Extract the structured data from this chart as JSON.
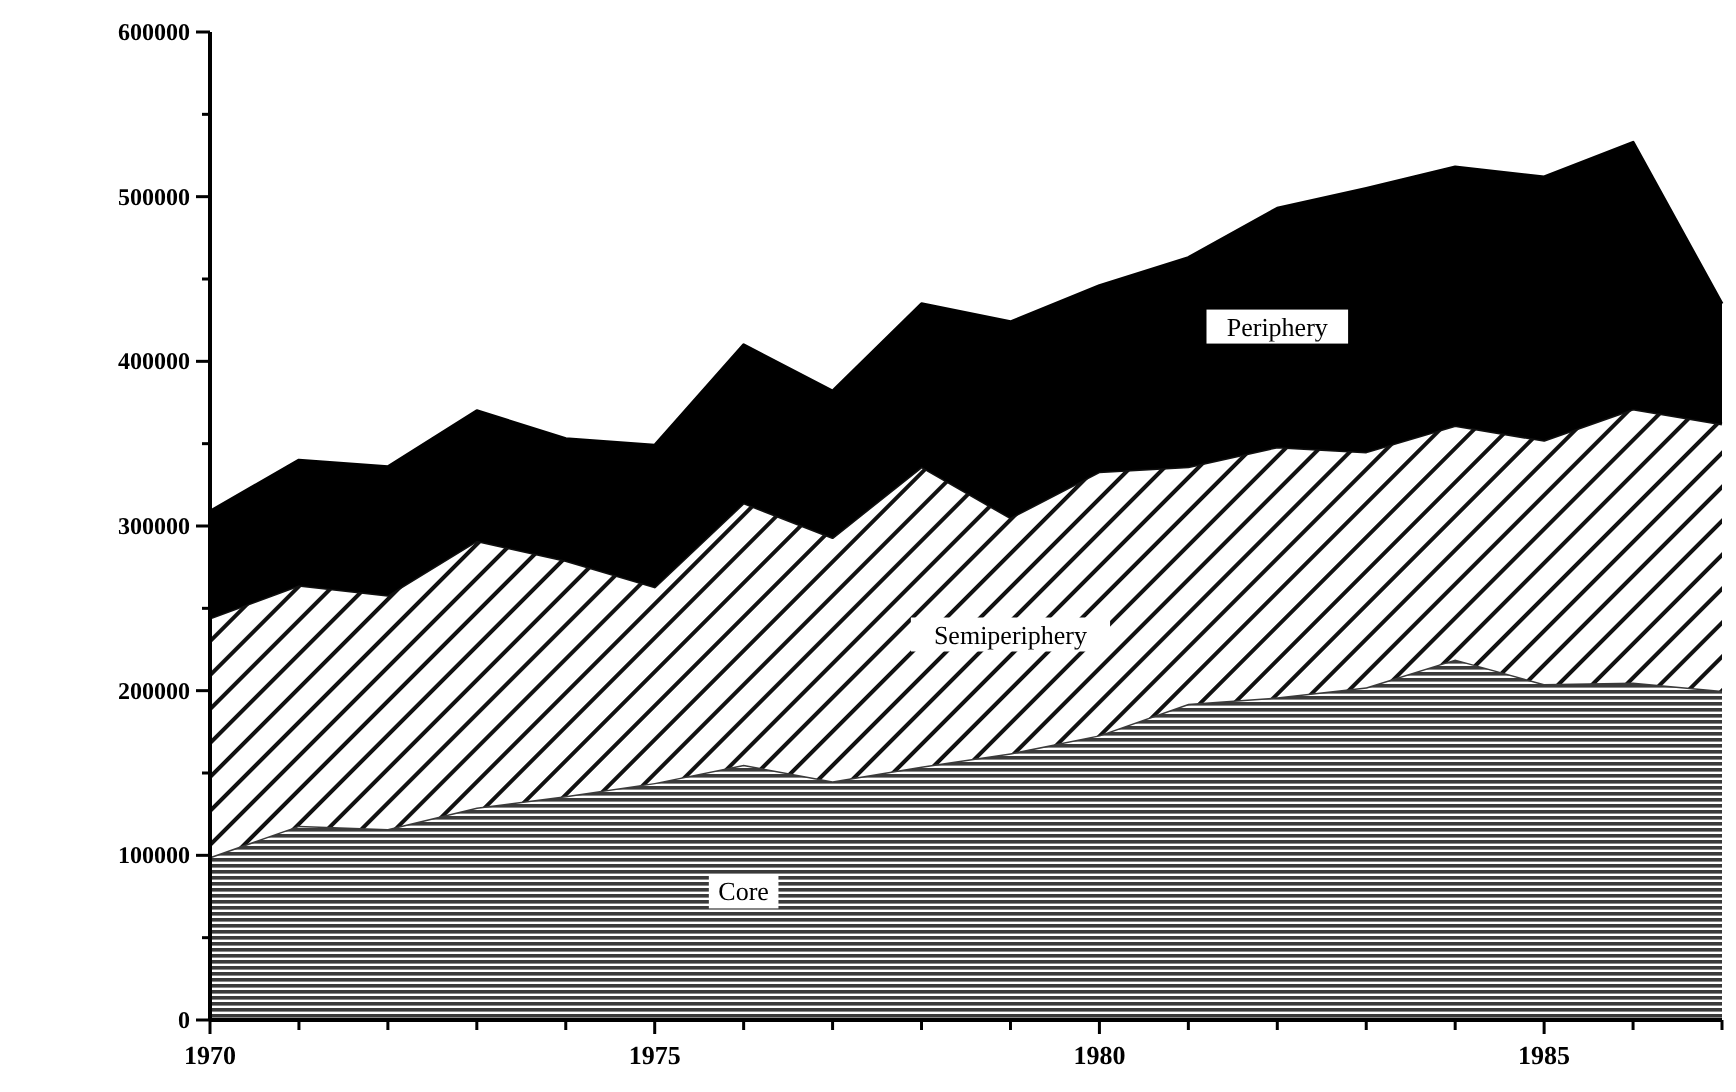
{
  "chart_data": {
    "type": "area",
    "stacked": true,
    "x": [
      1970,
      1971,
      1972,
      1973,
      1974,
      1975,
      1976,
      1977,
      1978,
      1979,
      1980,
      1981,
      1982,
      1983,
      1984,
      1985,
      1986,
      1987
    ],
    "series": [
      {
        "name": "Core",
        "color": "#3a3a3a",
        "values": [
          99000,
          118000,
          116000,
          129000,
          136000,
          144000,
          155000,
          145000,
          154000,
          162000,
          173000,
          192000,
          196000,
          202000,
          219000,
          204000,
          205000,
          200000
        ]
      },
      {
        "name": "Semiperiphery",
        "color": "#111111",
        "values": [
          145000,
          146000,
          142000,
          162000,
          143000,
          119000,
          159000,
          148000,
          182000,
          143000,
          160000,
          144000,
          152000,
          143000,
          142000,
          148000,
          166000,
          162000
        ]
      },
      {
        "name": "Periphery",
        "color": "#000000",
        "values": [
          65000,
          76000,
          78000,
          79000,
          74000,
          86000,
          96000,
          89000,
          99000,
          119000,
          113000,
          127000,
          145000,
          160000,
          157000,
          160000,
          162000,
          73000
        ]
      }
    ],
    "xlim": [
      1970,
      1987
    ],
    "xticks": [
      1970,
      {
        "value": 1971,
        "label": null
      },
      {
        "value": 1972,
        "label": null
      },
      {
        "value": 1973,
        "label": null
      },
      {
        "value": 1974,
        "label": null
      },
      1975,
      {
        "value": 1976,
        "label": null
      },
      {
        "value": 1977,
        "label": null
      },
      {
        "value": 1978,
        "label": null
      },
      {
        "value": 1979,
        "label": null
      },
      1980,
      {
        "value": 1981,
        "label": null
      },
      {
        "value": 1982,
        "label": null
      },
      {
        "value": 1983,
        "label": null
      },
      {
        "value": 1984,
        "label": null
      },
      1985,
      {
        "value": 1986,
        "label": null
      },
      {
        "value": 1987,
        "label": null
      }
    ],
    "ylim": [
      0,
      600000
    ],
    "yticks": [
      0,
      {
        "value": 50000,
        "label": null
      },
      100000,
      {
        "value": 150000,
        "label": null
      },
      200000,
      {
        "value": 250000,
        "label": null
      },
      300000,
      {
        "value": 350000,
        "label": null
      },
      400000,
      {
        "value": 450000,
        "label": null
      },
      500000,
      {
        "value": 550000,
        "label": null
      },
      600000
    ],
    "grid": false
  }
}
